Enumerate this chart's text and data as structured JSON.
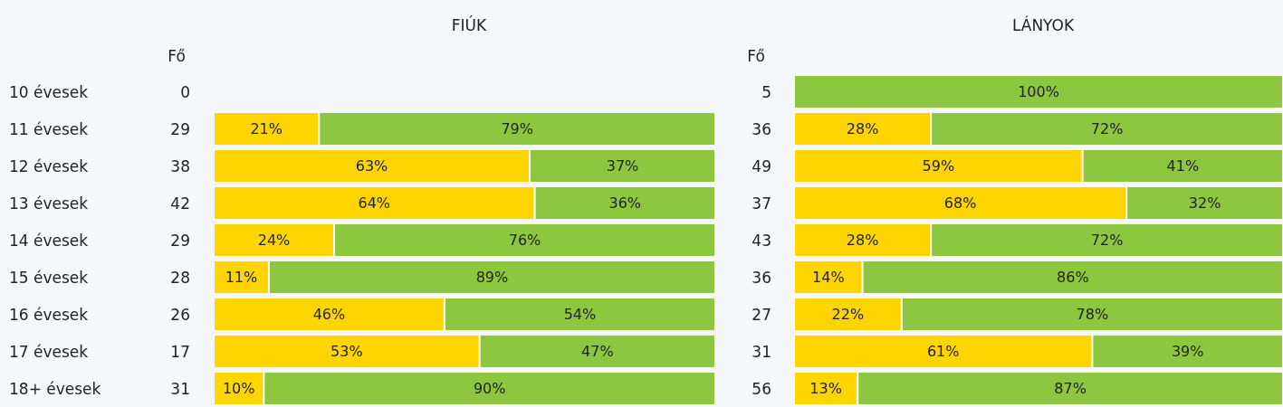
{
  "chart_data": [
    {
      "type": "bar",
      "title": "FIÚK",
      "ylabel": "Fő",
      "orientation": "horizontal",
      "stacked": true,
      "xlim": [
        0,
        100
      ],
      "tick_labels": "y",
      "categories": [
        "10 évesek",
        "11 évesek",
        "12 évesek",
        "13 évesek",
        "14 évesek",
        "15 évesek",
        "16 évesek",
        "17 évesek",
        "18+ évesek"
      ],
      "series": [
        {
          "color": "#ffd500",
          "values": [
            null,
            21,
            63,
            64,
            24,
            11,
            46,
            53,
            10
          ],
          "value_labels": [
            null,
            "21%",
            "63%",
            "64%",
            "24%",
            "11%",
            "46%",
            "53%",
            "10%"
          ]
        },
        {
          "color": "#8dc63f",
          "values": [
            null,
            79,
            37,
            36,
            76,
            89,
            54,
            47,
            90
          ],
          "value_labels": [
            null,
            "79%",
            "37%",
            "36%",
            "76%",
            "89%",
            "54%",
            "47%",
            "90%"
          ]
        }
      ],
      "annotations": [
        "0",
        "29",
        "38",
        "42",
        "29",
        "28",
        "26",
        "17",
        "31"
      ]
    },
    {
      "type": "bar",
      "title": "LÁNYOK",
      "ylabel": "Fő",
      "orientation": "horizontal",
      "stacked": true,
      "xlim": [
        0,
        100
      ],
      "tick_labels": "y",
      "categories": [
        "5",
        "36",
        "49",
        "37",
        "43",
        "36",
        "27",
        "31",
        "56"
      ],
      "series": [
        {
          "color": "#ffd500",
          "values": [
            null,
            28,
            59,
            68,
            28,
            14,
            22,
            61,
            13
          ],
          "value_labels": [
            null,
            "28%",
            "59%",
            "68%",
            "28%",
            "14%",
            "22%",
            "61%",
            "13%"
          ]
        },
        {
          "color": "#8dc63f",
          "values": [
            100,
            72,
            41,
            32,
            72,
            86,
            78,
            39,
            87
          ],
          "value_labels": [
            "100%",
            "72%",
            "41%",
            "32%",
            "72%",
            "86%",
            "78%",
            "39%",
            "87%"
          ]
        }
      ]
    }
  ]
}
